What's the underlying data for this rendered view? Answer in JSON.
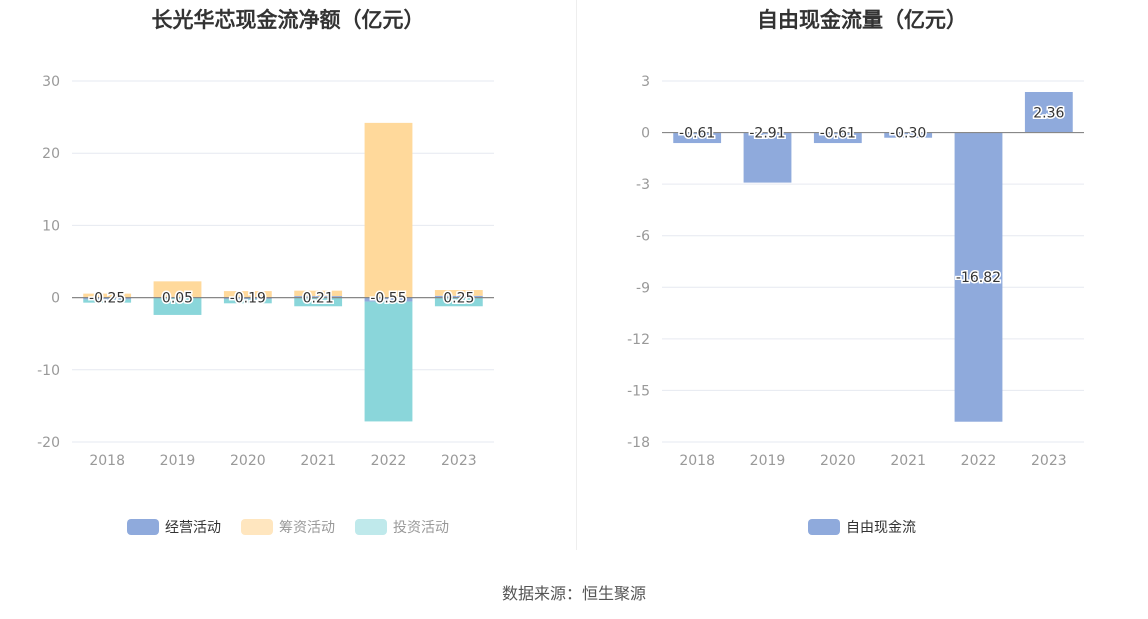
{
  "chart_data": [
    {
      "type": "bar",
      "stacked": true,
      "title": "长光华芯现金流净额（亿元）",
      "categories": [
        "2018",
        "2019",
        "2020",
        "2021",
        "2022",
        "2023"
      ],
      "series": [
        {
          "name": "经营活动",
          "color": "#8faadc",
          "values": [
            -0.25,
            0.05,
            -0.19,
            0.21,
            -0.55,
            0.25
          ]
        },
        {
          "name": "筹资活动",
          "color": "#ffd99b",
          "values": [
            0.55,
            2.2,
            0.9,
            0.75,
            24.2,
            0.8
          ]
        },
        {
          "name": "投资活动",
          "color": "#8ad6da",
          "values": [
            -0.45,
            -2.4,
            -0.6,
            -1.2,
            -16.6,
            -1.2
          ]
        }
      ],
      "data_labels": [
        "-0.25",
        "0.05",
        "-0.19",
        "0.21",
        "-0.55",
        "0.25"
      ],
      "ylim": [
        -20,
        30
      ],
      "yticks": [
        30,
        20,
        10,
        0,
        -10,
        -20
      ],
      "grid": true,
      "legend": "bottom"
    },
    {
      "type": "bar",
      "title": "自由现金流量（亿元）",
      "categories": [
        "2018",
        "2019",
        "2020",
        "2021",
        "2022",
        "2023"
      ],
      "series": [
        {
          "name": "自由现金流",
          "color": "#8faadc",
          "values": [
            -0.61,
            -2.91,
            -0.61,
            -0.3,
            -16.82,
            2.36
          ]
        }
      ],
      "data_labels": [
        "-0.61",
        "-2.91",
        "-0.61",
        "-0.30",
        "-16.82",
        "2.36"
      ],
      "ylim": [
        -18,
        3
      ],
      "yticks": [
        3,
        0,
        -3,
        -6,
        -9,
        -12,
        -15,
        -18
      ],
      "grid": true,
      "legend": "bottom"
    }
  ],
  "source": "数据来源：恒生聚源"
}
